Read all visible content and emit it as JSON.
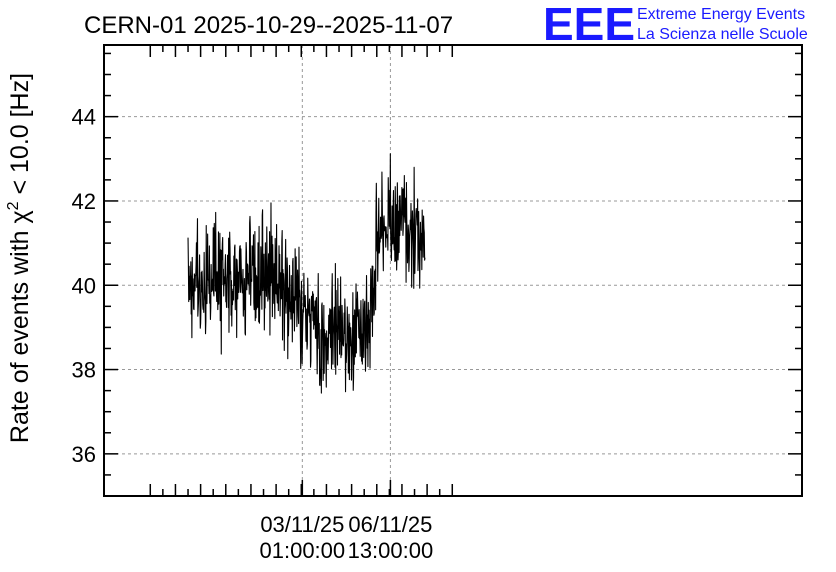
{
  "chart_data": {
    "type": "line",
    "title": "CERN-01 2025-10-29--2025-11-07",
    "ylabel": {
      "prefix": "Rate of events with ",
      "symbol": "χ",
      "superscript": "2",
      "suffix": " < 10.0 [Hz]"
    },
    "xlabel": "",
    "ylim": [
      35.0,
      45.7
    ],
    "y_ticks": [
      36,
      38,
      40,
      42,
      44
    ],
    "y_tick_labels": [
      "36",
      "38",
      "40",
      "42",
      "44"
    ],
    "x_ticks": [
      {
        "date": "03/11/25",
        "time": "01:00:00"
      },
      {
        "date": "06/11/25",
        "time": "13:00:00"
      }
    ],
    "grid": true,
    "series": [
      {
        "color": "#000000",
        "trend": [
          {
            "t": "2025-10-29 12:00",
            "y": 40.1
          },
          {
            "t": "2025-10-30 12:00",
            "y": 40.2
          },
          {
            "t": "2025-10-31 12:00",
            "y": 40.0
          },
          {
            "t": "2025-11-01 12:00",
            "y": 40.3
          },
          {
            "t": "2025-11-02 12:00",
            "y": 40.0
          },
          {
            "t": "2025-11-03 01:00",
            "y": 39.3
          },
          {
            "t": "2025-11-03 12:00",
            "y": 38.9
          },
          {
            "t": "2025-11-04 00:00",
            "y": 38.7
          },
          {
            "t": "2025-11-04 12:00",
            "y": 39.1
          },
          {
            "t": "2025-11-05 00:00",
            "y": 38.9
          },
          {
            "t": "2025-11-05 12:00",
            "y": 38.9
          },
          {
            "t": "2025-11-05 21:00",
            "y": 39.6
          },
          {
            "t": "2025-11-06 00:00",
            "y": 41.0
          },
          {
            "t": "2025-11-06 13:00",
            "y": 41.4
          },
          {
            "t": "2025-11-07 00:00",
            "y": 41.5
          },
          {
            "t": "2025-11-07 12:00",
            "y": 41.0
          },
          {
            "t": "2025-11-07 22:00",
            "y": 40.8
          }
        ],
        "spread": 1.7
      }
    ]
  },
  "logo": {
    "mark": "EEE",
    "line1": "Extreme Energy Events",
    "line2": "La Scienza nelle Scuole",
    "color": "#1a1aff"
  }
}
